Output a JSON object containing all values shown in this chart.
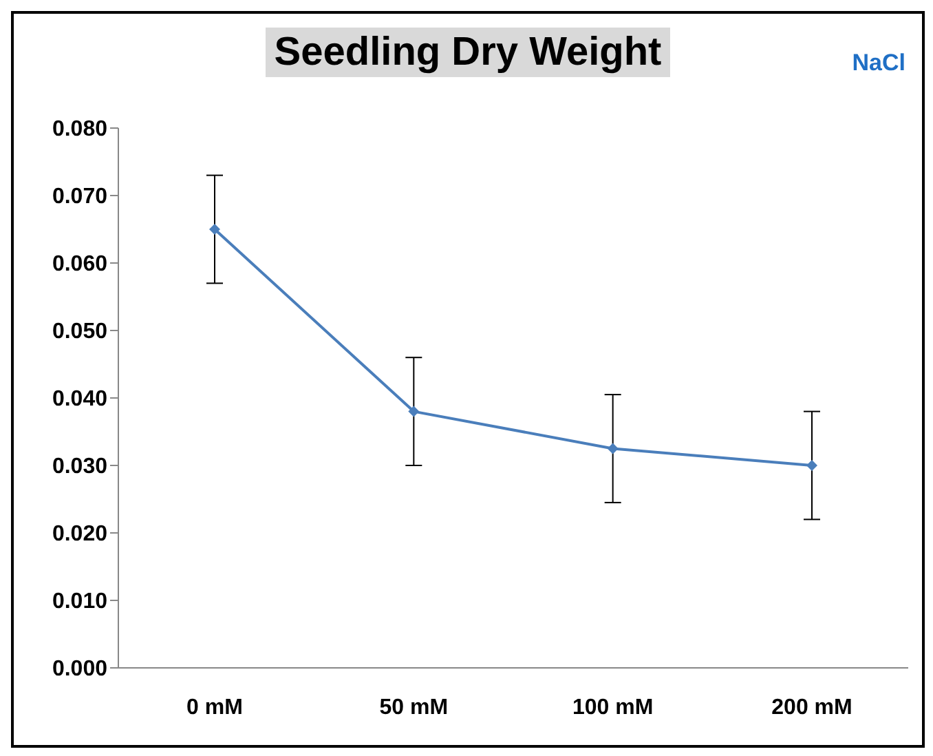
{
  "chart_data": {
    "type": "line",
    "title": "Seedling Dry Weight",
    "annotations": [
      "NaCl"
    ],
    "categories": [
      "0 mM",
      "50 mM",
      "100 mM",
      "200 mM"
    ],
    "series": [
      {
        "color": "#4a7ebb",
        "values": [
          0.065,
          0.038,
          0.0325,
          0.03
        ],
        "errors": [
          0.008,
          0.008,
          0.008,
          0.008
        ]
      }
    ],
    "ylim": [
      0,
      0.08
    ],
    "yticks": [
      {
        "value": 0,
        "label": "0.000"
      },
      {
        "value": 0.01,
        "label": "0.010"
      },
      {
        "value": 0.02,
        "label": "0.020"
      },
      {
        "value": 0.03,
        "label": "0.030"
      },
      {
        "value": 0.04,
        "label": "0.040"
      },
      {
        "value": 0.05,
        "label": "0.050"
      },
      {
        "value": 0.06,
        "label": "0.060"
      },
      {
        "value": 0.07,
        "label": "0.070"
      },
      {
        "value": 0.08,
        "label": "0.080"
      }
    ],
    "grid": false,
    "legend": false,
    "marker": "diamond",
    "line_style": "solid"
  }
}
